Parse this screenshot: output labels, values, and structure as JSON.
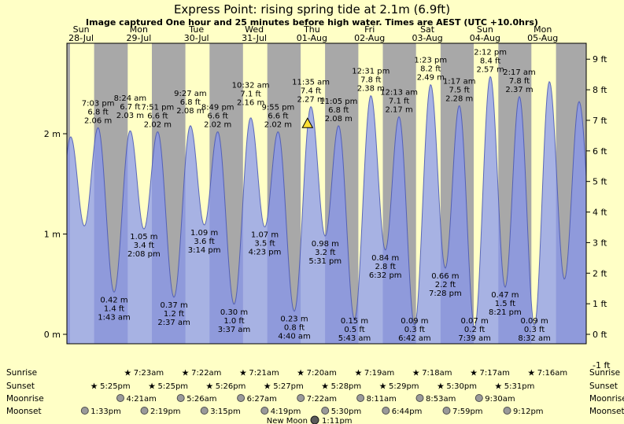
{
  "header": {
    "title": "Express Point: rising  spring tide at 2.1m (6.9ft)",
    "subtitle": "Image captured One hour and 25 minutes before high water. Times are AEST (UTC +10.0hrs)"
  },
  "chart_data": {
    "type": "area",
    "title": "Express Point tide curve",
    "x_axis": {
      "unit": "days",
      "start_t": 0.2536,
      "end_t": 9.2536,
      "days": [
        {
          "name": "Sun",
          "date": "28-Jul"
        },
        {
          "name": "Mon",
          "date": "29-Jul"
        },
        {
          "name": "Tue",
          "date": "30-Jul"
        },
        {
          "name": "Wed",
          "date": "31-Jul"
        },
        {
          "name": "Thu",
          "date": "01-Aug"
        },
        {
          "name": "Fri",
          "date": "02-Aug"
        },
        {
          "name": "Sat",
          "date": "03-Aug"
        },
        {
          "name": "Sun",
          "date": "04-Aug"
        },
        {
          "name": "Mon",
          "date": "05-Aug"
        }
      ]
    },
    "y_left": {
      "unit": "m",
      "ticks": [
        {
          "v": 0,
          "label": "0 m"
        },
        {
          "v": 1,
          "label": "1 m"
        },
        {
          "v": 2,
          "label": "2 m"
        }
      ]
    },
    "y_right": {
      "unit": "ft",
      "ticks": [
        {
          "v": -1,
          "label": "-1 ft"
        },
        {
          "v": 0,
          "label": "0 ft"
        },
        {
          "v": 1,
          "label": "1 ft"
        },
        {
          "v": 2,
          "label": "2 ft"
        },
        {
          "v": 3,
          "label": "3 ft"
        },
        {
          "v": 4,
          "label": "4 ft"
        },
        {
          "v": 5,
          "label": "5 ft"
        },
        {
          "v": 6,
          "label": "6 ft"
        },
        {
          "v": 7,
          "label": "7 ft"
        },
        {
          "v": 8,
          "label": "8 ft"
        },
        {
          "v": 9,
          "label": "9 ft"
        }
      ]
    },
    "extremes": [
      {
        "t": 0.036,
        "h": 0.5,
        "kind": "L"
      },
      {
        "t": 0.3194,
        "h": 1.97,
        "kind": "H"
      },
      {
        "t": 0.5569,
        "h": 1.08,
        "kind": "L"
      },
      {
        "t": 0.7938,
        "h": 2.06,
        "kind": "H",
        "labels": [
          "7:03 pm",
          "6.8 ft",
          "2.06 m"
        ]
      },
      {
        "t": 1.0715,
        "h": 0.42,
        "kind": "L",
        "labels": [
          "0.42 m",
          "1.4 ft",
          "1:43 am"
        ]
      },
      {
        "t": 1.35,
        "h": 2.03,
        "kind": "H",
        "labels": [
          "8:24 am",
          "6.7 ft",
          "2.03 m"
        ]
      },
      {
        "t": 1.5889,
        "h": 1.05,
        "kind": "L",
        "labels": [
          "1.05 m",
          "3.4 ft",
          "2:08 pm"
        ]
      },
      {
        "t": 1.8271,
        "h": 2.02,
        "kind": "H",
        "labels": [
          "7:51 pm",
          "6.6 ft",
          "2.02 m"
        ]
      },
      {
        "t": 2.109,
        "h": 0.37,
        "kind": "L",
        "labels": [
          "0.37 m",
          "1.2 ft",
          "2:37 am"
        ]
      },
      {
        "t": 2.3938,
        "h": 2.08,
        "kind": "H",
        "labels": [
          "9:27 am",
          "6.8 ft",
          "2.08 m"
        ]
      },
      {
        "t": 2.6347,
        "h": 1.09,
        "kind": "L",
        "labels": [
          "1.09 m",
          "3.6 ft",
          "3:14 pm"
        ]
      },
      {
        "t": 2.8674,
        "h": 2.02,
        "kind": "H",
        "labels": [
          "8:49 pm",
          "6.6 ft",
          "2.02 m"
        ]
      },
      {
        "t": 3.1507,
        "h": 0.3,
        "kind": "L",
        "labels": [
          "0.30 m",
          "1.0 ft",
          "3:37 am"
        ]
      },
      {
        "t": 3.4389,
        "h": 2.16,
        "kind": "H",
        "labels": [
          "10:32 am",
          "7.1 ft",
          "2.16 m"
        ]
      },
      {
        "t": 3.6826,
        "h": 1.07,
        "kind": "L",
        "labels": [
          "1.07 m",
          "3.5 ft",
          "4:23 pm"
        ]
      },
      {
        "t": 3.9132,
        "h": 2.02,
        "kind": "H",
        "labels": [
          "9:55 pm",
          "6.6 ft",
          "2.02 m"
        ]
      },
      {
        "t": 4.1944,
        "h": 0.23,
        "kind": "L",
        "labels": [
          "0.23 m",
          "0.8 ft",
          "4:40 am"
        ]
      },
      {
        "t": 4.4826,
        "h": 2.27,
        "kind": "H",
        "labels": [
          "11:35 am",
          "7.4 ft",
          "2.27 m"
        ]
      },
      {
        "t": 4.7299,
        "h": 0.98,
        "kind": "L",
        "labels": [
          "0.98 m",
          "3.2 ft",
          "5:31 pm"
        ]
      },
      {
        "t": 4.9618,
        "h": 2.08,
        "kind": "H",
        "labels": [
          "11:05 pm",
          "6.8 ft",
          "2.08 m"
        ]
      },
      {
        "t": 5.2382,
        "h": 0.15,
        "kind": "L",
        "labels": [
          "0.15 m",
          "0.5 ft",
          "5:43 am"
        ]
      },
      {
        "t": 5.5215,
        "h": 2.38,
        "kind": "H",
        "labels": [
          "12:31 pm",
          "7.8 ft",
          "2.38 m"
        ]
      },
      {
        "t": 5.7722,
        "h": 0.84,
        "kind": "L",
        "labels": [
          "0.84 m",
          "2.8 ft",
          "6:32 pm"
        ]
      },
      {
        "t": 6.009,
        "h": 2.17,
        "kind": "H",
        "labels": [
          "12:13 am",
          "7.1 ft",
          "2.17 m"
        ]
      },
      {
        "t": 6.2792,
        "h": 0.09,
        "kind": "L",
        "labels": [
          "0.09 m",
          "0.3 ft",
          "6:42 am"
        ]
      },
      {
        "t": 6.5576,
        "h": 2.49,
        "kind": "H",
        "labels": [
          "1:23 pm",
          "8.2 ft",
          "2.49 m"
        ]
      },
      {
        "t": 6.8111,
        "h": 0.66,
        "kind": "L",
        "labels": [
          "0.66 m",
          "2.2 ft",
          "7:28 pm"
        ]
      },
      {
        "t": 7.0535,
        "h": 2.28,
        "kind": "H",
        "labels": [
          "1:17 am",
          "7.5 ft",
          "2.28 m"
        ]
      },
      {
        "t": 7.3188,
        "h": 0.07,
        "kind": "L",
        "labels": [
          "0.07 m",
          "0.2 ft",
          "7:39 am"
        ]
      },
      {
        "t": 7.5917,
        "h": 2.57,
        "kind": "H",
        "labels": [
          "2:12 pm",
          "8.4 ft",
          "2.57 m"
        ]
      },
      {
        "t": 7.8479,
        "h": 0.47,
        "kind": "L",
        "labels": [
          "0.47 m",
          "1.5 ft",
          "8:21 pm"
        ]
      },
      {
        "t": 8.0951,
        "h": 2.37,
        "kind": "H",
        "labels": [
          "2:17 am",
          "7.8 ft",
          "2.37 m"
        ]
      },
      {
        "t": 8.3556,
        "h": 0.09,
        "kind": "L",
        "labels": [
          "0.09 m",
          "0.3 ft",
          "8:32 am"
        ]
      },
      {
        "t": 8.615,
        "h": 2.52,
        "kind": "H"
      },
      {
        "t": 8.876,
        "h": 0.55,
        "kind": "L"
      },
      {
        "t": 9.13,
        "h": 2.32,
        "kind": "H"
      },
      {
        "t": 9.4,
        "h": 0.6,
        "kind": "L"
      }
    ],
    "night_bands_t": [
      [
        0.2536,
        0.3083
      ],
      [
        0.7257,
        1.3076
      ],
      [
        1.7257,
        2.3069
      ],
      [
        2.7264,
        3.3063
      ],
      [
        3.7271,
        4.3056
      ],
      [
        4.7278,
        5.3049
      ],
      [
        5.7285,
        6.3042
      ],
      [
        6.7292,
        7.3035
      ],
      [
        7.7299,
        8.3028
      ],
      [
        8.7306,
        9.2536
      ]
    ],
    "now_marker": {
      "t": 4.4236,
      "h": 2.1,
      "meaning": "current level 2.1m rising"
    },
    "colors": {
      "day_bg": "#ffffc6",
      "night_bg": "#a8a8a8",
      "tide_fill": "rgba(133,148,238,0.72)",
      "tide_stroke": "rgba(70,85,180,0.85)",
      "day_label": "#ff0000",
      "marker_fill": "#ffe033",
      "star": "#bb7a00",
      "moon_fill": "#9a9a9a",
      "moon_stroke": "#4d4d4d",
      "new_moon_fill": "#5a5a5a",
      "new_moon_stroke": "#1a1a1a"
    }
  },
  "astro": {
    "rows": [
      {
        "id": "sunrise",
        "label": "Sunrise",
        "icon": "star",
        "events": [
          {
            "t": 1.30764,
            "time": "7:23am"
          },
          {
            "t": 2.30694,
            "time": "7:22am"
          },
          {
            "t": 3.30625,
            "time": "7:21am"
          },
          {
            "t": 4.30556,
            "time": "7:20am"
          },
          {
            "t": 5.30486,
            "time": "7:19am"
          },
          {
            "t": 6.30417,
            "time": "7:18am"
          },
          {
            "t": 7.30347,
            "time": "7:17am"
          },
          {
            "t": 8.30278,
            "time": "7:16am"
          }
        ]
      },
      {
        "id": "sunset",
        "label": "Sunset",
        "icon": "star",
        "events": [
          {
            "t": 0.72569,
            "time": "5:25pm"
          },
          {
            "t": 1.72569,
            "time": "5:25pm"
          },
          {
            "t": 2.72639,
            "time": "5:26pm"
          },
          {
            "t": 3.72708,
            "time": "5:27pm"
          },
          {
            "t": 4.72778,
            "time": "5:28pm"
          },
          {
            "t": 5.72847,
            "time": "5:29pm"
          },
          {
            "t": 6.72917,
            "time": "5:30pm"
          },
          {
            "t": 7.72986,
            "time": "5:31pm"
          }
        ]
      },
      {
        "id": "moonrise",
        "label": "Moonrise",
        "icon": "moon",
        "events": [
          {
            "t": 1.18125,
            "time": "4:21am"
          },
          {
            "t": 2.22639,
            "time": "5:26am"
          },
          {
            "t": 3.26875,
            "time": "6:27am"
          },
          {
            "t": 4.30694,
            "time": "7:22am"
          },
          {
            "t": 5.34097,
            "time": "8:11am"
          },
          {
            "t": 6.37014,
            "time": "8:53am"
          },
          {
            "t": 7.39583,
            "time": "9:30am"
          }
        ]
      },
      {
        "id": "moonset",
        "label": "Moonset",
        "icon": "moon",
        "events": [
          {
            "t": 0.56458,
            "time": "1:33pm"
          },
          {
            "t": 1.59653,
            "time": "2:19pm"
          },
          {
            "t": 2.63542,
            "time": "3:15pm"
          },
          {
            "t": 3.67986,
            "time": "4:19pm"
          },
          {
            "t": 4.72917,
            "time": "5:30pm"
          },
          {
            "t": 5.78056,
            "time": "6:44pm"
          },
          {
            "t": 6.83264,
            "time": "7:59pm"
          },
          {
            "t": 7.88333,
            "time": "9:12pm"
          }
        ]
      }
    ],
    "new_moon": {
      "label": "New Moon",
      "time": "1:11pm",
      "t": 4.54931
    }
  }
}
